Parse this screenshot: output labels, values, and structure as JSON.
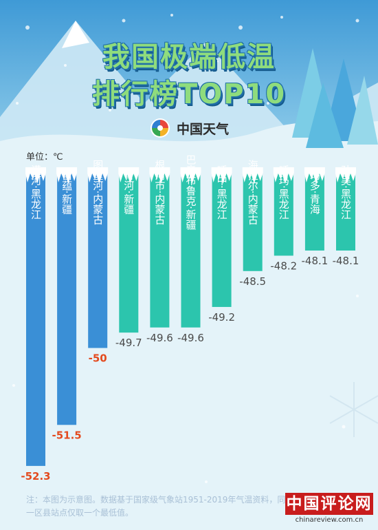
{
  "title": {
    "line1": "我国极端低温",
    "line2": "排行榜TOP10"
  },
  "logo": {
    "text": "中国天气",
    "icon": "swirl-logo-icon"
  },
  "unit_label": "单位：℃",
  "note": "注：本图为示意图。数据基于国家级气象站1951-2019年气温资料，同一区县站点仅取一个最低值。",
  "brand": {
    "main": "中国评论网",
    "url": "chinareview.com.cn"
  },
  "colors": {
    "blue_bar": "#3a8fd6",
    "teal_bar": "#2cc5ad",
    "blue_value": "#e34a1e",
    "teal_value": "#4a4a4a"
  },
  "chart_data": {
    "type": "bar",
    "orientation": "vertical-downward",
    "unit": "℃",
    "categories": [
      "漠河·黑龙江",
      "富蕴·新疆",
      "图里河·内蒙古",
      "青河·新疆",
      "根河市·内蒙古",
      "巴音布鲁克·新疆",
      "呼中·黑龙江",
      "海拉尔·内蒙古",
      "呼玛·黑龙江",
      "玛多·青海",
      "孙吴·黑龙江"
    ],
    "values": [
      -52.3,
      -51.5,
      -50,
      -49.7,
      -49.6,
      -49.6,
      -49.2,
      -48.5,
      -48.2,
      -48.1,
      -48.1
    ],
    "value_labels": [
      "-52.3",
      "-51.5",
      "-50",
      "-49.7",
      "-49.6",
      "-49.6",
      "-49.2",
      "-48.5",
      "-48.2",
      "-48.1",
      "-48.1"
    ],
    "highlight_top": 3
  }
}
